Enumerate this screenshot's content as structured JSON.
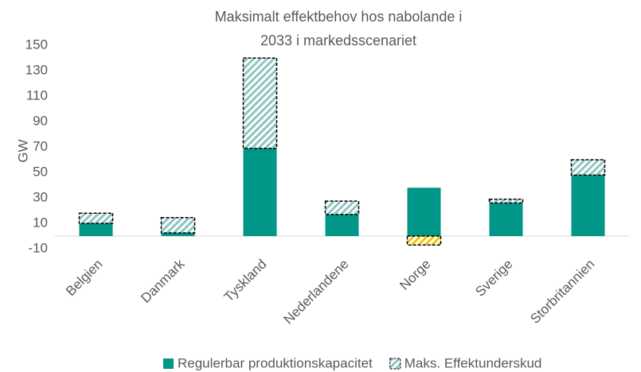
{
  "chart_data": {
    "type": "stacked_bar",
    "title": "Maksimalt effektbehov hos nabolande i 2033 i markedsscenariet",
    "y_label": "GW",
    "categories": [
      "Belgien",
      "Danmark",
      "Tyskland",
      "Nederlandene",
      "Norge",
      "Sverige",
      "Storbritannien"
    ],
    "series": [
      {
        "name": "Regulerbar produktionskapacitet",
        "color": "#009688",
        "values": [
          10,
          2.5,
          69,
          17,
          38,
          26,
          48
        ]
      },
      {
        "name": "Maks. Effektunderskud",
        "color": "#8fc4c0",
        "negative_color": "#f2c500",
        "hatched": true,
        "values": [
          8,
          12,
          71,
          10.5,
          -7,
          3,
          12
        ]
      }
    ],
    "ylim": [
      -10,
      150
    ],
    "yticks": [
      -10,
      10,
      30,
      50,
      70,
      90,
      110,
      130,
      150
    ],
    "legend": "bottom"
  }
}
